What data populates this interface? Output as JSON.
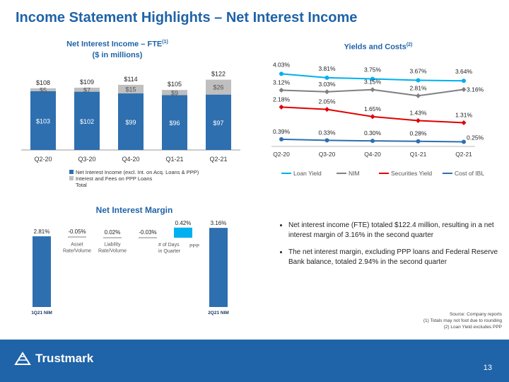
{
  "page": {
    "title": "Income Statement Highlights – Net Interest Income",
    "page_number": "13",
    "logo_text": "Trustmark",
    "bullets": [
      "Net interest income (FTE) totaled $122.4 million, resulting in a net interest margin of 3.16% in the second quarter",
      "The net interest margin, excluding PPP loans and Federal Reserve Bank balance, totaled 2.94% in the second quarter"
    ],
    "source_lines": [
      "Source: Company reports",
      "(1) Totals may not foot due to rounding",
      "(2) Loan Yield excludes PPP"
    ]
  },
  "chart_data": [
    {
      "type": "bar",
      "title": "Net Interest Income – FTE",
      "title_sup": "(1)",
      "subtitle": "($ in millions)",
      "categories": [
        "Q2-20",
        "Q3-20",
        "Q4-20",
        "Q1-21",
        "Q2-21"
      ],
      "series": [
        {
          "name": "Net Interest Income (excl. Int. on Acq. Loans & PPP)",
          "values": [
            103,
            102,
            99,
            96,
            97
          ],
          "labels": [
            "$103",
            "$102",
            "$99",
            "$96",
            "$97"
          ],
          "color": "#2e6fb0"
        },
        {
          "name": "Interest and Fees on PPP Loans",
          "values": [
            5,
            7,
            15,
            9,
            26
          ],
          "labels": [
            "$5",
            "$7",
            "$15",
            "$9",
            "$26"
          ],
          "color": "#bfbfbf"
        }
      ],
      "totals": {
        "name": "Total",
        "values": [
          108,
          109,
          114,
          105,
          122
        ],
        "labels": [
          "$108",
          "$109",
          "$114",
          "$105",
          "$122"
        ]
      },
      "ylim": [
        0,
        130
      ],
      "stacked": true
    },
    {
      "type": "line",
      "title": "Yields and Costs",
      "title_sup": "(2)",
      "categories": [
        "Q2-20",
        "Q3-20",
        "Q4-20",
        "Q1-21",
        "Q2-21"
      ],
      "series": [
        {
          "name": "Loan Yield",
          "values": [
            4.03,
            3.81,
            3.75,
            3.67,
            3.64
          ],
          "labels": [
            "4.03%",
            "3.81%",
            "3.75%",
            "3.67%",
            "3.64%"
          ],
          "color": "#00b0f0"
        },
        {
          "name": "NIM",
          "values": [
            3.12,
            3.03,
            3.15,
            2.81,
            3.16
          ],
          "labels": [
            "3.12%",
            "3.03%",
            "3.15%",
            "2.81%",
            "3.16%"
          ],
          "color": "#808080"
        },
        {
          "name": "Securities Yield",
          "values": [
            2.18,
            2.05,
            1.65,
            1.43,
            1.31
          ],
          "labels": [
            "2.18%",
            "2.05%",
            "1.65%",
            "1.43%",
            "1.31%"
          ],
          "color": "#e00000"
        },
        {
          "name": "Cost of IBL",
          "values": [
            0.39,
            0.33,
            0.3,
            0.28,
            0.25
          ],
          "labels": [
            "0.39%",
            "0.33%",
            "0.30%",
            "0.28%",
            "0.25%"
          ],
          "color": "#2e6fb0"
        }
      ],
      "legend_position": "bottom"
    },
    {
      "type": "bar",
      "subtype": "waterfall",
      "title": "Net Interest Margin",
      "categories": [
        "1Q21 NIM",
        "Asset Rate/Volume",
        "Liability Rate/Volume",
        "# of Days in Quarter",
        "PPP",
        "2Q21 NIM"
      ],
      "values": [
        2.81,
        -0.05,
        0.02,
        -0.03,
        0.42,
        3.16
      ],
      "labels": [
        "2.81%",
        "-0.05%",
        "0.02%",
        "-0.03%",
        "0.42%",
        "3.16%"
      ],
      "kinds": [
        "total",
        "delta",
        "delta",
        "delta",
        "delta",
        "total"
      ],
      "colors": {
        "total": "#2e6fb0",
        "delta": "#bfbfbf",
        "highlight": "#00b0f0"
      }
    }
  ]
}
